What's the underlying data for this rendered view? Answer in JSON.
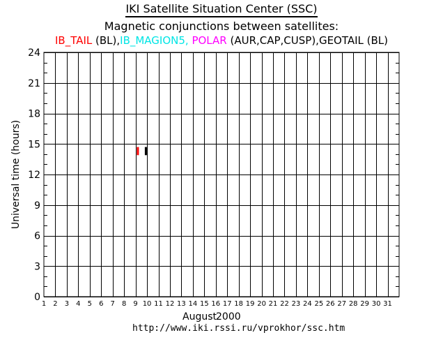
{
  "header": {
    "title": "IKI Satellite Situation Center (SSC)",
    "subtitle": "Magnetic conjunctions between satellites:"
  },
  "satellites_line": {
    "part1": "IB_TAIL",
    "part2": " (BL),",
    "part3": "IB_MAGION5,",
    "part4": " POLAR",
    "part5": " (AUR,CAP,CUSP),GEOTAIL (BL)"
  },
  "colors": {
    "ib_tail": "#ff0000",
    "ib_magion5": "#00e5e5",
    "polar": "#ff00ff",
    "geotail": "#000000",
    "grid": "#000000"
  },
  "footer": {
    "month": "August",
    "year": "2000",
    "url": "http://www.iki.rssi.ru/vprokhor/ssc.htm"
  },
  "chart_data": {
    "type": "bar",
    "title": "Magnetic conjunctions between satellites:",
    "xlabel": "August 2000",
    "ylabel": "Universal time (hours)",
    "x_ticks": [
      1,
      2,
      3,
      4,
      5,
      6,
      7,
      8,
      9,
      10,
      11,
      12,
      13,
      14,
      15,
      16,
      17,
      18,
      19,
      20,
      21,
      22,
      23,
      24,
      25,
      26,
      27,
      28,
      29,
      30,
      31
    ],
    "y_ticks": [
      0,
      3,
      6,
      9,
      12,
      15,
      18,
      21,
      24
    ],
    "xlim": [
      1,
      32
    ],
    "ylim": [
      0,
      24
    ],
    "grid": true,
    "series": [
      {
        "name": "IB_TAIL",
        "color": "#ff0000",
        "segments": [
          {
            "day": 9.2,
            "start": 13.9,
            "end": 14.7
          }
        ]
      },
      {
        "name": "GEOTAIL",
        "color": "#000000",
        "segments": [
          {
            "day": 9.9,
            "start": 13.9,
            "end": 14.7
          }
        ]
      }
    ]
  }
}
